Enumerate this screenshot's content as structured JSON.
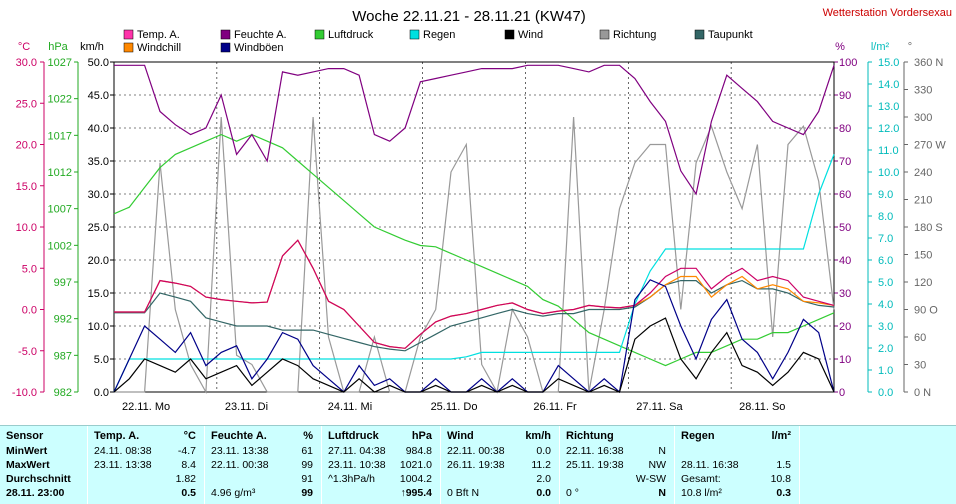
{
  "title": "Woche 22.11.21 - 28.11.21 (KW47)",
  "station": "Wetterstation Vordersexau",
  "legend": [
    {
      "name": "Temp. A.",
      "color": "#ff33aa"
    },
    {
      "name": "Feuchte A.",
      "color": "#800080"
    },
    {
      "name": "Luftdruck",
      "color": "#33cc33"
    },
    {
      "name": "Regen",
      "color": "#00e0e0"
    },
    {
      "name": "Wind",
      "color": "#000000"
    },
    {
      "name": "Richtung",
      "color": "#999999"
    },
    {
      "name": "Taupunkt",
      "color": "#336666"
    },
    {
      "name": "Windchill",
      "color": "#ff8800"
    },
    {
      "name": "Windböen",
      "color": "#000088"
    }
  ],
  "chart_data": {
    "type": "line",
    "x_labels": [
      "22.11. Mo",
      "23.11. Di",
      "24.11. Mi",
      "25.11. Do",
      "26.11. Fr",
      "27.11. Sa",
      "28.11. So"
    ],
    "axes": {
      "temp": {
        "unit": "°C",
        "color": "#ff33aa",
        "ticks": [
          "30.0",
          "25.0",
          "20.0",
          "15.0",
          "10.0",
          "5.0",
          "0.0",
          "-5.0",
          "-10.0"
        ],
        "range": [
          -10,
          30
        ]
      },
      "pressure": {
        "unit": "hPa",
        "color": "#33cc33",
        "ticks": [
          "1027",
          "1022",
          "1017",
          "1012",
          "1007",
          "1002",
          "997",
          "992",
          "987",
          "982"
        ],
        "range": [
          982,
          1032
        ]
      },
      "wind": {
        "unit": "km/h",
        "color": "#000000",
        "ticks": [
          "50.0",
          "45.0",
          "40.0",
          "35.0",
          "30.0",
          "25.0",
          "20.0",
          "15.0",
          "10.0",
          "5.0",
          "0.0"
        ],
        "range": [
          0,
          50
        ]
      },
      "humidity": {
        "unit": "%",
        "color": "#800080",
        "ticks": [
          "100",
          "90",
          "80",
          "70",
          "60",
          "50",
          "40",
          "30",
          "20",
          "10",
          "0"
        ],
        "range": [
          0,
          100
        ]
      },
      "rain": {
        "unit": "l/m²",
        "color": "#00e0e0",
        "ticks": [
          "15.0",
          "14.0",
          "13.0",
          "12.0",
          "11.0",
          "10.0",
          "9.0",
          "8.0",
          "7.0",
          "6.0",
          "5.0",
          "4.0",
          "3.0",
          "2.0",
          "1.0",
          "0.0"
        ],
        "range": [
          0,
          15
        ]
      },
      "direction": {
        "unit": "°",
        "color": "#666666",
        "ticks": [
          "360 N",
          "330",
          "300",
          "270 W",
          "240",
          "210",
          "180 S",
          "150",
          "120",
          "90 O",
          "60",
          "30",
          "0 N"
        ],
        "range": [
          0,
          360
        ]
      }
    },
    "series": [
      {
        "name": "Temp. A.",
        "color": "#cc0066",
        "axis": "temp",
        "values": [
          -0.3,
          -0.3,
          -0.3,
          3.5,
          3.2,
          2.8,
          1.5,
          1.2,
          1.0,
          0.8,
          0.9,
          6.5,
          8.4,
          5.0,
          1.0,
          0.0,
          -2.0,
          -4.0,
          -4.5,
          -4.7,
          -3.0,
          -1.5,
          -0.8,
          -0.5,
          0.0,
          0.5,
          0.8,
          0.0,
          -0.5,
          -0.2,
          0.0,
          0.5,
          0.3,
          0.2,
          0.5,
          2.0,
          4.0,
          5.0,
          5.0,
          2.5,
          4.0,
          5.0,
          3.5,
          4.0,
          3.5,
          1.5,
          1.0,
          0.5
        ]
      },
      {
        "name": "Taupunkt",
        "color": "#336666",
        "axis": "temp",
        "values": [
          -0.4,
          -0.4,
          -0.4,
          2.0,
          1.5,
          1.0,
          -1.0,
          -1.5,
          -2.0,
          -2.0,
          -2.0,
          -2.5,
          -2.5,
          -2.5,
          -3.0,
          -3.5,
          -4.0,
          -4.5,
          -4.8,
          -5.0,
          -4.0,
          -3.0,
          -2.0,
          -1.5,
          -1.0,
          -0.5,
          0.0,
          -0.5,
          -0.8,
          -0.5,
          -0.5,
          0.0,
          0.0,
          0.0,
          0.3,
          1.5,
          3.0,
          3.5,
          3.5,
          2.0,
          3.0,
          3.5,
          2.5,
          2.5,
          2.0,
          1.0,
          0.5,
          0.3
        ]
      },
      {
        "name": "Windchill",
        "color": "#ff8800",
        "axis": "temp",
        "values": [
          -0.3,
          -0.3,
          -0.3,
          3.5,
          3.2,
          2.8,
          1.5,
          1.2,
          1.0,
          0.8,
          0.9,
          6.5,
          8.4,
          5.0,
          1.0,
          0.0,
          -2.0,
          -4.0,
          -4.5,
          -4.7,
          -3.0,
          -1.5,
          -0.8,
          -0.5,
          0.0,
          0.5,
          0.8,
          0.0,
          -0.5,
          -0.2,
          0.0,
          0.5,
          0.3,
          0.2,
          0.5,
          1.5,
          3.0,
          4.0,
          4.0,
          1.5,
          3.0,
          4.0,
          2.5,
          3.0,
          2.5,
          1.0,
          0.8,
          0.5
        ]
      },
      {
        "name": "Feuchte A.",
        "color": "#800080",
        "axis": "humidity",
        "values": [
          99,
          99,
          99,
          85,
          81,
          78,
          80,
          90,
          72,
          78,
          70,
          97,
          96,
          97,
          98,
          98,
          96,
          78,
          76,
          80,
          94,
          95,
          96,
          97,
          98,
          98,
          98,
          99,
          99,
          99,
          98,
          97,
          99,
          99,
          95,
          88,
          82,
          67,
          60,
          82,
          96,
          92,
          88,
          82,
          80,
          78,
          85,
          99
        ]
      },
      {
        "name": "Luftdruck",
        "color": "#33cc33",
        "axis": "pressure",
        "values": [
          1009,
          1010,
          1013,
          1016,
          1018,
          1019,
          1020,
          1021,
          1020,
          1021,
          1020,
          1019,
          1017,
          1015,
          1013,
          1011,
          1009,
          1007,
          1006,
          1005,
          1004.2,
          1004,
          1003,
          1002,
          1001,
          1000,
          999,
          998,
          996,
          995,
          993,
          991,
          990,
          989,
          988,
          987,
          986,
          987,
          988,
          988,
          989,
          990,
          990,
          991,
          991,
          992,
          993,
          994
        ]
      },
      {
        "name": "Regen",
        "color": "#00e0e0",
        "axis": "rain",
        "values": [
          0,
          1.5,
          1.5,
          1.5,
          1.5,
          1.5,
          1.5,
          1.5,
          1.5,
          1.5,
          1.5,
          1.5,
          1.5,
          1.5,
          1.5,
          1.5,
          1.5,
          1.5,
          1.5,
          1.5,
          1.5,
          1.5,
          1.5,
          1.6,
          1.8,
          1.8,
          1.8,
          1.8,
          1.8,
          1.8,
          1.8,
          1.8,
          1.8,
          1.8,
          4.0,
          5.5,
          6.5,
          6.5,
          6.5,
          6.5,
          6.5,
          6.5,
          6.5,
          6.5,
          6.5,
          6.5,
          9.0,
          10.8
        ]
      },
      {
        "name": "Wind",
        "color": "#000000",
        "axis": "wind",
        "values": [
          0,
          2,
          5,
          4,
          3,
          5,
          2,
          3,
          4,
          1,
          3,
          5,
          4,
          2,
          1,
          0,
          2,
          0,
          1,
          0,
          0,
          1,
          0,
          0,
          1,
          0,
          1,
          0,
          0,
          2,
          1,
          0,
          1,
          0,
          8,
          10,
          11.2,
          5,
          2,
          6,
          9,
          4,
          3,
          1,
          3,
          6,
          5,
          0
        ]
      },
      {
        "name": "Windböen",
        "color": "#000088",
        "axis": "wind",
        "values": [
          0,
          5,
          10,
          8,
          6,
          9,
          4,
          6,
          7,
          2,
          5,
          9,
          8,
          4,
          2,
          0,
          4,
          1,
          2,
          0,
          0,
          2,
          0,
          0,
          2,
          0,
          2,
          0,
          0,
          4,
          2,
          0,
          2,
          0,
          14,
          17,
          16,
          10,
          5,
          11,
          14,
          8,
          6,
          2,
          6,
          11,
          9,
          0
        ]
      },
      {
        "name": "Richtung",
        "color": "#999999",
        "axis": "direction",
        "values": [
          0,
          0,
          0,
          250,
          90,
          30,
          0,
          300,
          40,
          30,
          0,
          0,
          0,
          300,
          60,
          0,
          0,
          60,
          0,
          0,
          60,
          90,
          240,
          270,
          30,
          0,
          90,
          60,
          0,
          0,
          300,
          0,
          90,
          200,
          250,
          270,
          270,
          90,
          250,
          290,
          240,
          200,
          270,
          60,
          270,
          290,
          230,
          90
        ]
      }
    ]
  },
  "stats": {
    "cols": [
      {
        "header": "Sensor",
        "unit": "",
        "rows": [
          "MinWert",
          "MaxWert",
          "Durchschnitt",
          "28.11. 23:00"
        ]
      },
      {
        "header": "Temp. A.",
        "unit": "°C",
        "rows": [
          [
            "24.11. 08:38",
            "-4.7"
          ],
          [
            "23.11. 13:38",
            "8.4"
          ],
          [
            "",
            "1.82"
          ],
          [
            "",
            "0.5"
          ]
        ]
      },
      {
        "header": "Feuchte A.",
        "unit": "%",
        "rows": [
          [
            "23.11. 13:38",
            "61"
          ],
          [
            "22.11. 00:38",
            "99"
          ],
          [
            "",
            "91"
          ],
          [
            "4.96 g/m³",
            "99"
          ]
        ]
      },
      {
        "header": "Luftdruck",
        "unit": "hPa",
        "rows": [
          [
            "27.11. 04:38",
            "984.8"
          ],
          [
            "23.11. 10:38",
            "1021.0"
          ],
          [
            "^1.3hPa/h",
            "1004.2"
          ],
          [
            "",
            "↑995.4"
          ]
        ]
      },
      {
        "header": "Wind",
        "unit": "km/h",
        "rows": [
          [
            "22.11. 00:38",
            "0.0"
          ],
          [
            "26.11. 19:38",
            "11.2"
          ],
          [
            "",
            "2.0"
          ],
          [
            "0 Bft N",
            "0.0"
          ]
        ]
      },
      {
        "header": "Richtung",
        "unit": "",
        "rows": [
          [
            "22.11. 16:38",
            "N"
          ],
          [
            "25.11. 19:38",
            "NW"
          ],
          [
            "",
            "W-SW"
          ],
          [
            "0 °",
            "N"
          ]
        ]
      },
      {
        "header": "Regen",
        "unit": "l/m²",
        "rows": [
          [
            "",
            ""
          ],
          [
            "28.11. 16:38",
            "1.5"
          ],
          [
            "Gesamt:",
            "10.8"
          ],
          [
            "10.8 l/m²",
            "0.3"
          ]
        ]
      }
    ]
  }
}
